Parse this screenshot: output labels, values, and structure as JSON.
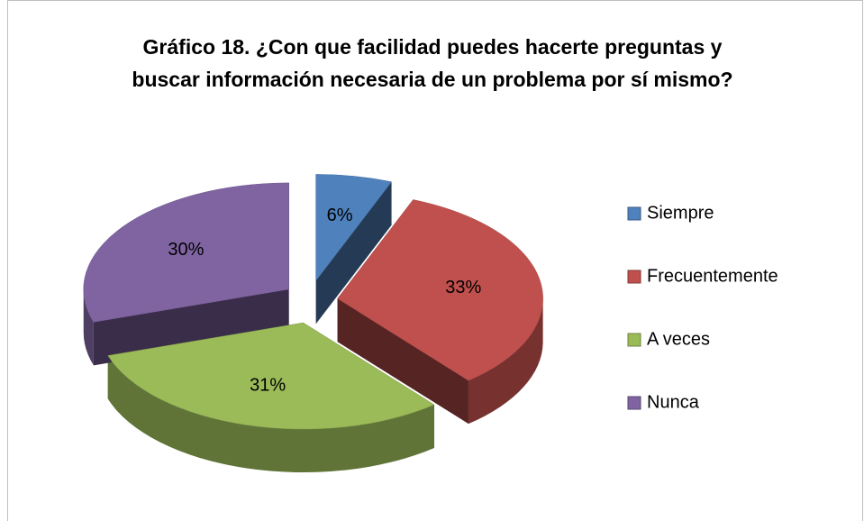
{
  "chart_data": {
    "type": "pie",
    "title": "Gráfico 18.  ¿Con que facilidad puedes hacerte preguntas y buscar información necesaria de un problema por sí mismo?",
    "categories": [
      "Siempre",
      "Frecuentemente",
      "A veces",
      "Nunca"
    ],
    "values": [
      6,
      33,
      31,
      30
    ],
    "value_labels": [
      "6%",
      "33%",
      "31%",
      "30%"
    ],
    "colors": [
      "#4f81bd",
      "#c0504d",
      "#9bbb59",
      "#8064a2"
    ],
    "legend": "right"
  }
}
